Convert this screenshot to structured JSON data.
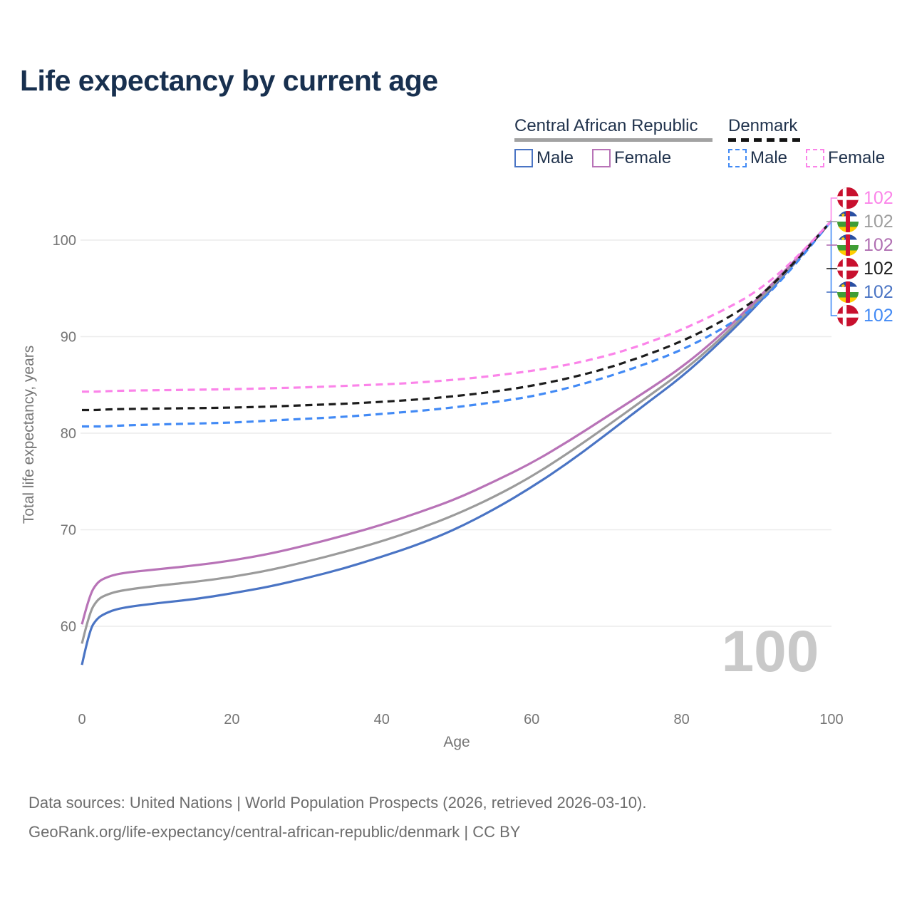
{
  "header": {
    "title": "Life expectancy by current age"
  },
  "legend": {
    "groups": [
      {
        "label": "Central African Republic",
        "line_style": "solid",
        "rule_color": "#a2a2a2",
        "items": [
          {
            "label": "Male",
            "color": "#4a74c4",
            "dashed": false
          },
          {
            "label": "Female",
            "color": "#b873b7",
            "dashed": false
          }
        ]
      },
      {
        "label": "Denmark",
        "line_style": "dashed",
        "rule_color": "#141414",
        "items": [
          {
            "label": "Male",
            "color": "#428af5",
            "dashed": true
          },
          {
            "label": "Female",
            "color": "#fb84e9",
            "dashed": true
          }
        ]
      }
    ]
  },
  "chart_data": {
    "type": "line",
    "title": "Life expectancy by current age",
    "xlabel": "Age",
    "ylabel": "Total life expectancy, years",
    "xlim": [
      0,
      100
    ],
    "ylim": [
      55,
      104
    ],
    "xticks": [
      0,
      20,
      40,
      60,
      80,
      100
    ],
    "yticks": [
      60,
      70,
      80,
      90,
      100
    ],
    "grid": "horizontal",
    "legend_position": "top-right",
    "watermark": "100",
    "x": [
      0,
      1,
      2,
      3,
      5,
      10,
      15,
      20,
      25,
      30,
      35,
      40,
      45,
      50,
      55,
      60,
      65,
      70,
      75,
      80,
      85,
      90,
      95,
      100
    ],
    "series": [
      {
        "id": "car-male",
        "country": "Central African Republic",
        "group": "Male",
        "color": "#4a74c4",
        "dashed": false,
        "values": [
          56.0,
          59.6,
          60.8,
          61.3,
          61.9,
          62.4,
          62.8,
          63.4,
          64.1,
          65.0,
          66.0,
          67.2,
          68.5,
          70.1,
          72.1,
          74.4,
          77.0,
          79.9,
          82.9,
          85.8,
          89.3,
          93.2,
          97.5,
          102
        ]
      },
      {
        "id": "car-average",
        "country": "Central African Republic",
        "group": "Both",
        "color": "#9b9b9b",
        "dashed": false,
        "values": [
          58.2,
          61.4,
          62.7,
          63.2,
          63.7,
          64.2,
          64.6,
          65.1,
          65.8,
          66.7,
          67.7,
          68.8,
          70.1,
          71.6,
          73.4,
          75.5,
          78.0,
          80.7,
          83.5,
          86.3,
          89.6,
          93.5,
          97.6,
          102
        ]
      },
      {
        "id": "car-female",
        "country": "Central African Republic",
        "group": "Female",
        "color": "#b873b7",
        "dashed": false,
        "values": [
          60.2,
          63.2,
          64.5,
          65.0,
          65.5,
          65.9,
          66.3,
          66.8,
          67.5,
          68.4,
          69.4,
          70.5,
          71.8,
          73.2,
          75.0,
          76.9,
          79.2,
          81.7,
          84.2,
          86.8,
          90.0,
          93.8,
          97.8,
          102
        ]
      },
      {
        "id": "denmark-male",
        "country": "Denmark",
        "group": "Male",
        "color": "#428af5",
        "dashed": true,
        "values": [
          80.7,
          80.7,
          80.7,
          80.7,
          80.8,
          80.9,
          81.0,
          81.1,
          81.3,
          81.5,
          81.7,
          82.0,
          82.3,
          82.7,
          83.2,
          83.8,
          84.7,
          85.8,
          87.1,
          88.6,
          90.6,
          93.1,
          97.3,
          102
        ]
      },
      {
        "id": "denmark-average",
        "country": "Denmark",
        "group": "Both",
        "color": "#1c1c1c",
        "dashed": true,
        "values": [
          82.4,
          82.4,
          82.4,
          82.45,
          82.5,
          82.55,
          82.6,
          82.65,
          82.75,
          82.9,
          83.05,
          83.25,
          83.5,
          83.85,
          84.3,
          84.9,
          85.7,
          86.7,
          88.0,
          89.5,
          91.4,
          93.8,
          97.6,
          102
        ]
      },
      {
        "id": "denmark-female",
        "country": "Denmark",
        "group": "Female",
        "color": "#fb84e9",
        "dashed": true,
        "values": [
          84.3,
          84.3,
          84.3,
          84.35,
          84.4,
          84.45,
          84.5,
          84.55,
          84.65,
          84.75,
          84.9,
          85.05,
          85.25,
          85.55,
          85.95,
          86.45,
          87.1,
          88.0,
          89.2,
          90.7,
          92.5,
          94.6,
          97.9,
          102
        ]
      }
    ],
    "end_labels": [
      {
        "flag": "denmark",
        "value": "102",
        "color": "#fb84e9"
      },
      {
        "flag": "central-african-republic",
        "value": "102",
        "color": "#9e9e9e"
      },
      {
        "flag": "central-african-republic",
        "value": "102",
        "color": "#b06fb2"
      },
      {
        "flag": "denmark",
        "value": "102",
        "color": "#1c1c1c"
      },
      {
        "flag": "central-african-republic",
        "value": "102",
        "color": "#4a74c4"
      },
      {
        "flag": "denmark",
        "value": "102",
        "color": "#428af5"
      }
    ]
  },
  "footer": {
    "line1": "Data sources: United Nations | World Population Prospects (2026, retrieved 2026-03-10).",
    "line2": "GeoRank.org/life-expectancy/central-african-republic/denmark | CC BY"
  }
}
